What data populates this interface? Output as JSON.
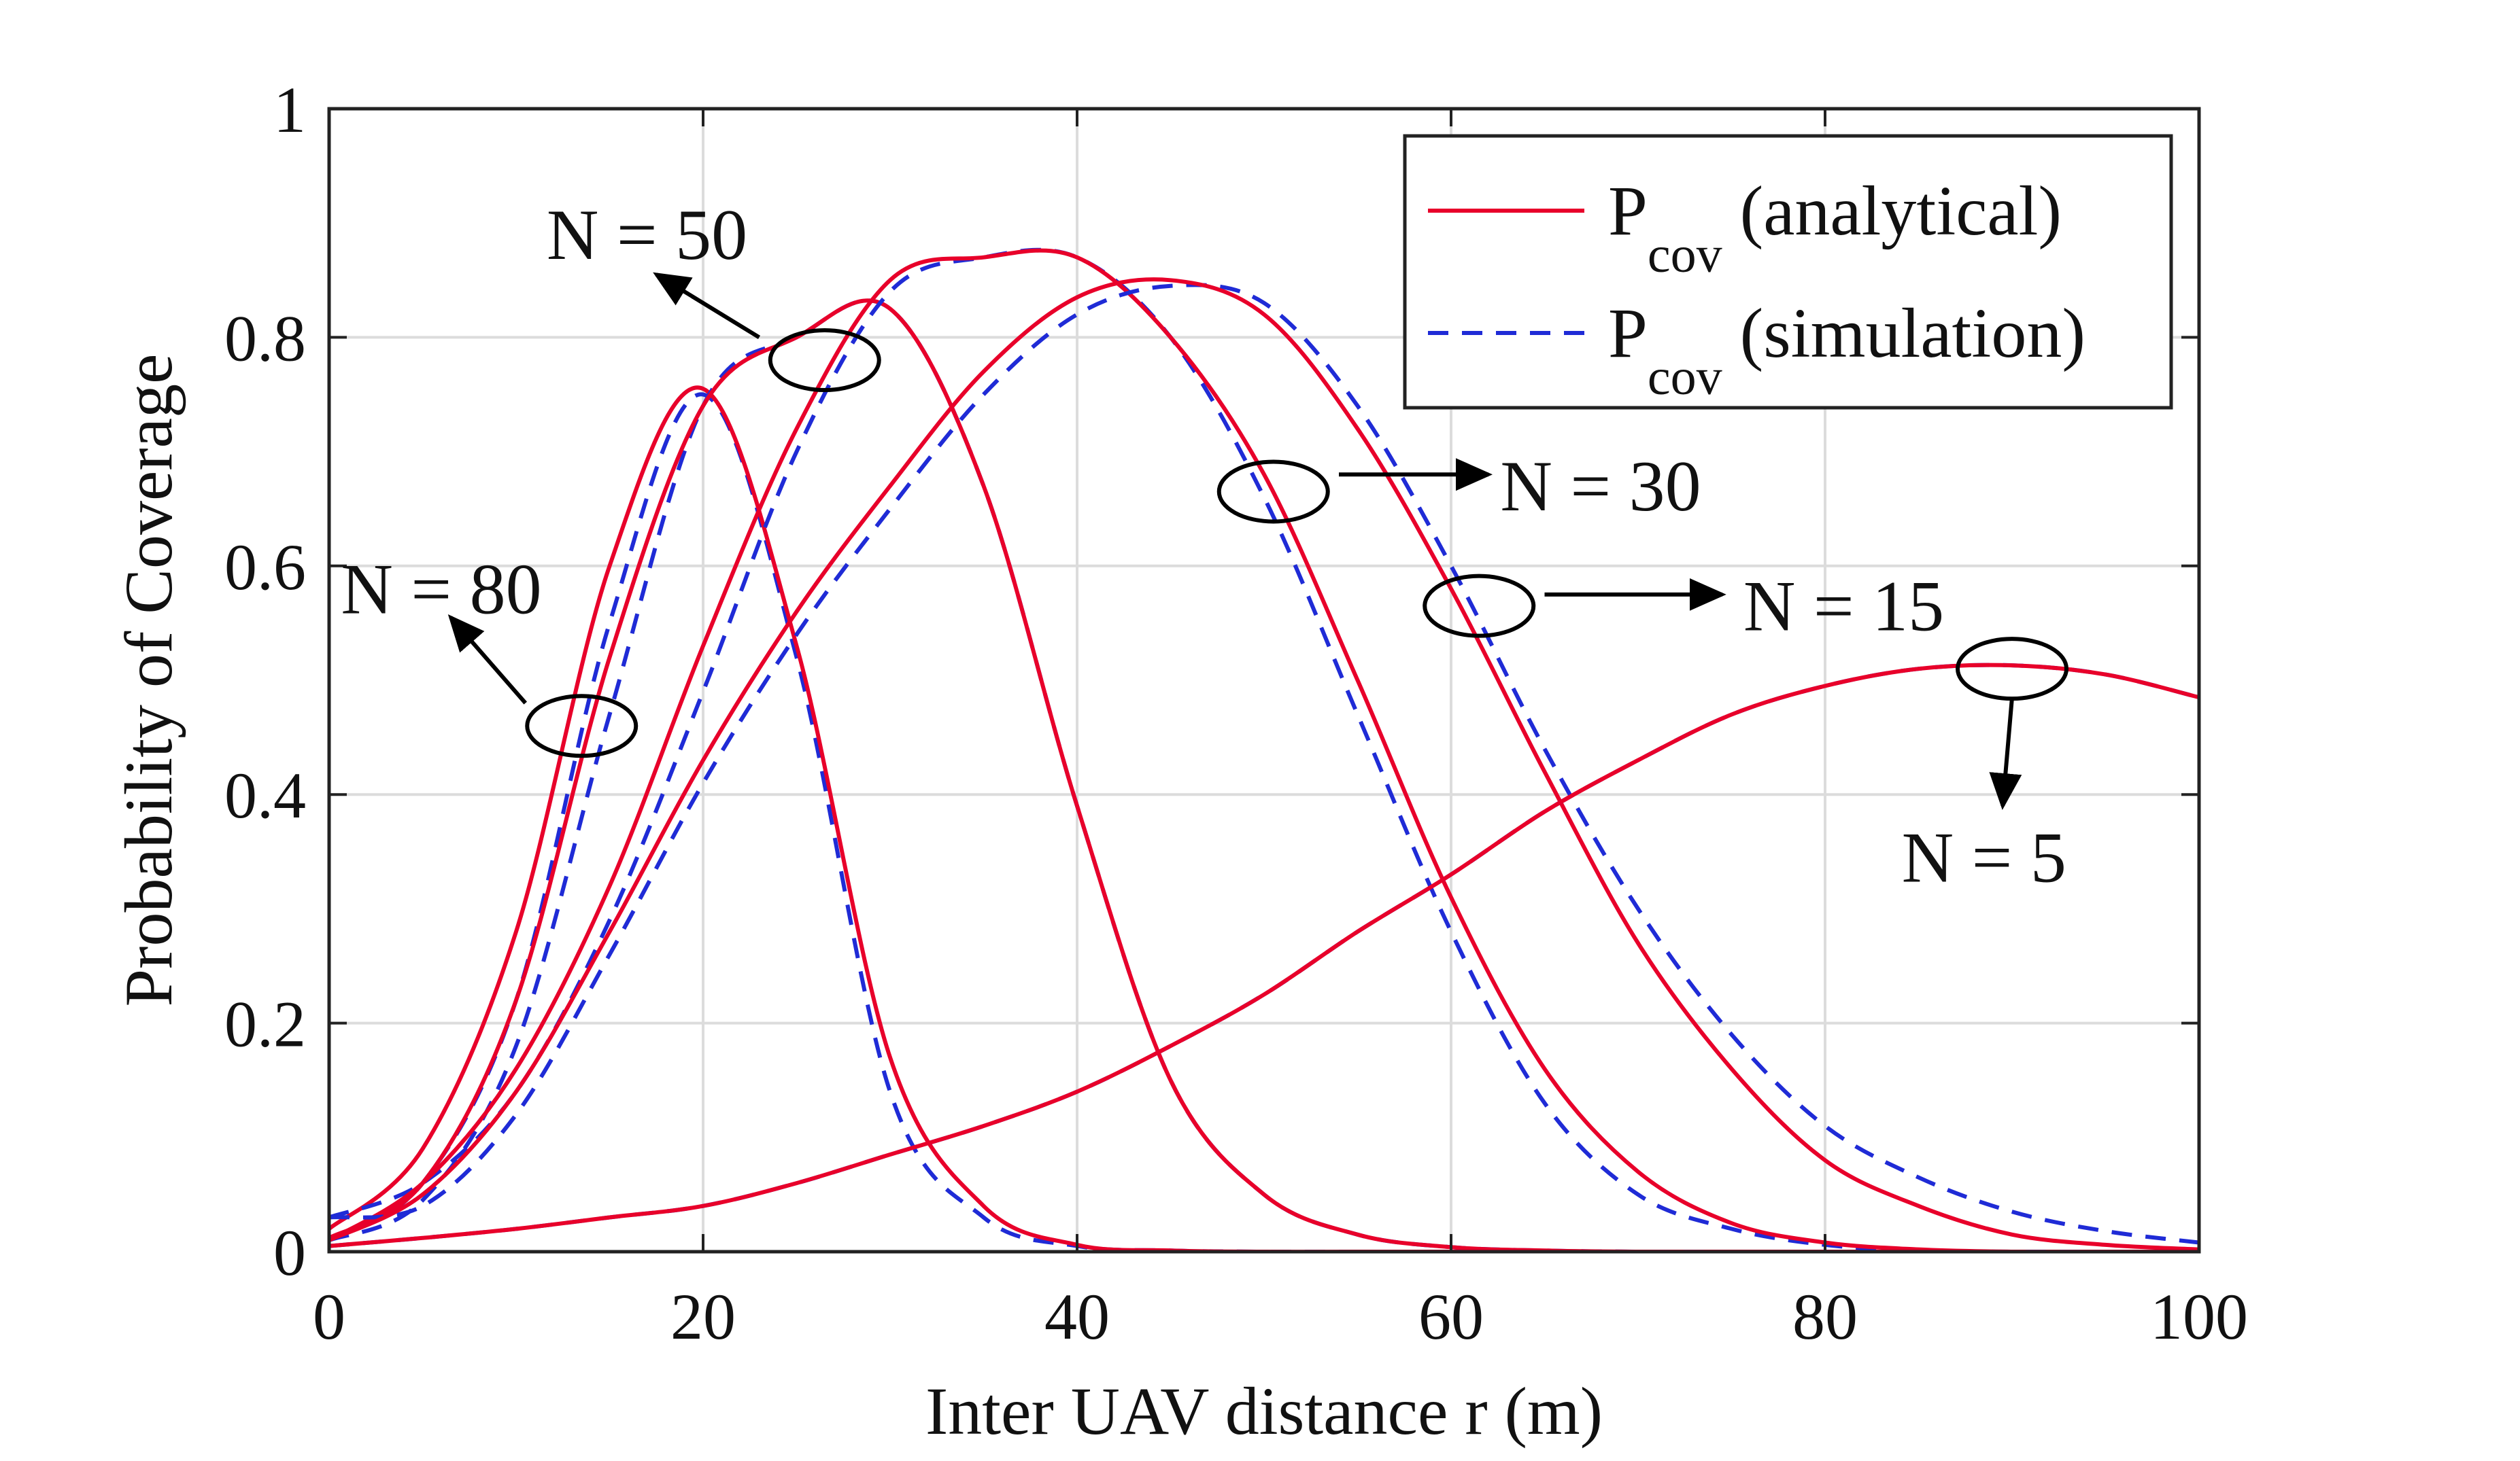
{
  "chart_data": {
    "type": "line",
    "title": "",
    "xlabel": "Inter UAV distance r (m)",
    "ylabel": "Probability of Coverage",
    "xlim": [
      0,
      100
    ],
    "ylim": [
      0,
      1
    ],
    "xticks": [
      "0",
      "20",
      "40",
      "60",
      "80",
      "100"
    ],
    "yticks": [
      "0",
      "0.2",
      "0.4",
      "0.6",
      "0.8",
      "1"
    ],
    "grid": true,
    "legend_position": "top-right",
    "legend": [
      {
        "main": "P",
        "sub": "cov",
        "rest": " (analytical)",
        "color": "#e8002a",
        "style": "solid"
      },
      {
        "main": "P",
        "sub": "cov",
        "rest": " (simulation)",
        "color": "#1f2bd6",
        "style": "dashed"
      }
    ],
    "x": [
      0,
      5,
      10,
      15,
      20,
      25,
      30,
      35,
      40,
      45,
      50,
      55,
      60,
      65,
      70,
      75,
      80,
      85,
      90,
      95,
      100
    ],
    "curves": [
      {
        "label": "N = 80",
        "analytical": [
          0.02,
          0.09,
          0.28,
          0.6,
          0.755,
          0.53,
          0.17,
          0.04,
          0.006,
          0.001,
          0,
          0,
          0,
          0,
          0,
          0,
          0,
          0,
          0,
          0,
          0
        ],
        "simulation": [
          0.01,
          0.06,
          0.22,
          0.55,
          0.75,
          0.52,
          0.14,
          0.03,
          0.005,
          0.001,
          0,
          0,
          0,
          0,
          0,
          0,
          0,
          0,
          0,
          0,
          0
        ]
      },
      {
        "label": "N = 50",
        "analytical": [
          0.012,
          0.06,
          0.22,
          0.52,
          0.74,
          0.8,
          0.825,
          0.67,
          0.39,
          0.15,
          0.05,
          0.015,
          0.004,
          0.001,
          0,
          0,
          0,
          0,
          0,
          0,
          0
        ],
        "simulation": [
          0.01,
          0.045,
          0.18,
          0.47,
          0.74,
          0.8,
          0.825,
          0.67,
          0.39,
          0.15,
          0.05,
          0.015,
          0.004,
          0.001,
          0,
          0,
          0,
          0,
          0,
          0,
          0
        ]
      },
      {
        "label": "N = 30",
        "analytical": [
          0.01,
          0.06,
          0.16,
          0.32,
          0.53,
          0.72,
          0.85,
          0.87,
          0.87,
          0.8,
          0.68,
          0.5,
          0.31,
          0.16,
          0.07,
          0.025,
          0.008,
          0.002,
          0,
          0,
          0
        ],
        "simulation": [
          0.03,
          0.06,
          0.14,
          0.29,
          0.49,
          0.7,
          0.84,
          0.87,
          0.87,
          0.8,
          0.66,
          0.47,
          0.28,
          0.13,
          0.05,
          0.02,
          0.006,
          0.001,
          0,
          0,
          0
        ]
      },
      {
        "label": "N = 15",
        "analytical": [
          0.01,
          0.05,
          0.14,
          0.28,
          0.43,
          0.56,
          0.67,
          0.77,
          0.835,
          0.85,
          0.82,
          0.72,
          0.58,
          0.42,
          0.27,
          0.16,
          0.08,
          0.04,
          0.015,
          0.006,
          0.002
        ],
        "simulation": [
          0.03,
          0.04,
          0.12,
          0.26,
          0.41,
          0.54,
          0.65,
          0.75,
          0.82,
          0.845,
          0.83,
          0.74,
          0.6,
          0.44,
          0.3,
          0.19,
          0.11,
          0.065,
          0.035,
          0.018,
          0.008
        ]
      },
      {
        "label": "N = 5",
        "analytical": [
          0.005,
          0.012,
          0.02,
          0.03,
          0.04,
          0.06,
          0.085,
          0.11,
          0.14,
          0.18,
          0.225,
          0.28,
          0.33,
          0.385,
          0.43,
          0.47,
          0.495,
          0.51,
          0.513,
          0.505,
          0.485
        ],
        "simulation": [
          0.005,
          0.012,
          0.02,
          0.03,
          0.04,
          0.06,
          0.085,
          0.11,
          0.14,
          0.18,
          0.225,
          0.28,
          0.33,
          0.385,
          0.43,
          0.47,
          0.495,
          0.51,
          0.513,
          0.505,
          0.485
        ]
      }
    ],
    "annotations": [
      {
        "text": "N = 80",
        "ellipse": [
          13.5,
          0.46
        ],
        "arrow_from": [
          10.5,
          0.48
        ],
        "arrow_to": [
          6.5,
          0.555
        ],
        "text_pos": [
          6,
          0.58
        ]
      },
      {
        "text": "N = 50",
        "ellipse": [
          26.5,
          0.78
        ],
        "arrow_from": [
          23,
          0.8
        ],
        "arrow_to": [
          17.5,
          0.855
        ],
        "text_pos": [
          17,
          0.89
        ]
      },
      {
        "text": "N = 30",
        "ellipse": [
          50.5,
          0.665
        ],
        "arrow_from": [
          54,
          0.68
        ],
        "arrow_to": [
          62,
          0.68
        ],
        "text_pos": [
          68,
          0.67
        ]
      },
      {
        "text": "N = 15",
        "ellipse": [
          61.5,
          0.565
        ],
        "arrow_from": [
          65,
          0.575
        ],
        "arrow_to": [
          74.5,
          0.575
        ],
        "text_pos": [
          81,
          0.565
        ]
      },
      {
        "text": "N = 5",
        "ellipse": [
          90,
          0.51
        ],
        "arrow_from": [
          90,
          0.485
        ],
        "arrow_to": [
          89.5,
          0.39
        ],
        "text_pos": [
          88.5,
          0.345
        ]
      }
    ]
  }
}
